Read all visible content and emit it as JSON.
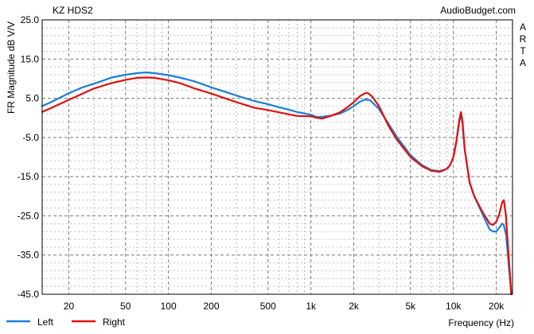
{
  "chart_data": {
    "type": "line",
    "title": "KZ HDS2",
    "watermark": "AudioBudget.com",
    "side_label": [
      "A",
      "R",
      "T",
      "A"
    ],
    "xlabel": "Frequency (Hz)",
    "ylabel": "FR Magnitude dB V/V",
    "x_scale": "log",
    "xlim": [
      13,
      26000
    ],
    "ylim": [
      -45,
      25
    ],
    "grid": true,
    "legend_position": "bottom-left",
    "y_ticks": [
      {
        "value": 25,
        "label": "25.0"
      },
      {
        "value": 15,
        "label": "15.0"
      },
      {
        "value": 5,
        "label": "5.0"
      },
      {
        "value": -5,
        "label": "-5.0"
      },
      {
        "value": -15,
        "label": "-15.0"
      },
      {
        "value": -25,
        "label": "-25.0"
      },
      {
        "value": -35,
        "label": "-35.0"
      },
      {
        "value": -45,
        "label": "-45.0"
      }
    ],
    "x_ticks": [
      {
        "value": 20,
        "label": "20"
      },
      {
        "value": 50,
        "label": "50"
      },
      {
        "value": 100,
        "label": "100"
      },
      {
        "value": 200,
        "label": "200"
      },
      {
        "value": 500,
        "label": "500"
      },
      {
        "value": 1000,
        "label": "1k"
      },
      {
        "value": 2000,
        "label": "2k"
      },
      {
        "value": 5000,
        "label": "5k"
      },
      {
        "value": 10000,
        "label": "10k"
      },
      {
        "value": 20000,
        "label": "20k"
      }
    ],
    "series": [
      {
        "name": "Left",
        "color": "#1a7fd6",
        "points": [
          [
            13,
            3.0
          ],
          [
            15,
            4.0
          ],
          [
            20,
            6.3
          ],
          [
            25,
            7.8
          ],
          [
            30,
            8.7
          ],
          [
            40,
            10.3
          ],
          [
            50,
            11.0
          ],
          [
            60,
            11.4
          ],
          [
            70,
            11.6
          ],
          [
            80,
            11.4
          ],
          [
            100,
            10.9
          ],
          [
            120,
            10.3
          ],
          [
            150,
            9.4
          ],
          [
            200,
            7.8
          ],
          [
            300,
            5.7
          ],
          [
            400,
            4.3
          ],
          [
            500,
            3.5
          ],
          [
            600,
            2.7
          ],
          [
            700,
            2.1
          ],
          [
            800,
            1.5
          ],
          [
            1000,
            0.8
          ],
          [
            1100,
            0.2
          ],
          [
            1200,
            0.3
          ],
          [
            1400,
            0.6
          ],
          [
            1600,
            1.1
          ],
          [
            1800,
            2.0
          ],
          [
            2000,
            3.0
          ],
          [
            2200,
            4.1
          ],
          [
            2400,
            4.7
          ],
          [
            2600,
            4.5
          ],
          [
            3000,
            2.3
          ],
          [
            3500,
            -1.5
          ],
          [
            4000,
            -4.8
          ],
          [
            5000,
            -9.5
          ],
          [
            6000,
            -12.0
          ],
          [
            7000,
            -13.3
          ],
          [
            8000,
            -13.6
          ],
          [
            9000,
            -13.0
          ],
          [
            9500,
            -12.0
          ],
          [
            10000,
            -10.0
          ],
          [
            10500,
            -6.0
          ],
          [
            11000,
            -1.0
          ],
          [
            11300,
            1.0
          ],
          [
            11600,
            -1.5
          ],
          [
            12000,
            -8.0
          ],
          [
            13000,
            -16.5
          ],
          [
            14000,
            -20.0
          ],
          [
            16000,
            -24.5
          ],
          [
            18000,
            -28.5
          ],
          [
            19000,
            -29.0
          ],
          [
            20000,
            -29.0
          ],
          [
            21000,
            -28.0
          ],
          [
            22000,
            -27.0
          ],
          [
            22500,
            -27.2
          ],
          [
            23500,
            -30.0
          ],
          [
            24500,
            -38.0
          ],
          [
            25500,
            -45.0
          ]
        ]
      },
      {
        "name": "Right",
        "color": "#e01010",
        "points": [
          [
            13,
            1.5
          ],
          [
            15,
            2.5
          ],
          [
            20,
            4.6
          ],
          [
            25,
            6.2
          ],
          [
            30,
            7.5
          ],
          [
            40,
            8.9
          ],
          [
            50,
            9.7
          ],
          [
            60,
            10.2
          ],
          [
            70,
            10.3
          ],
          [
            80,
            10.2
          ],
          [
            100,
            9.6
          ],
          [
            120,
            8.9
          ],
          [
            150,
            7.6
          ],
          [
            200,
            6.2
          ],
          [
            300,
            4.0
          ],
          [
            400,
            2.6
          ],
          [
            500,
            2.0
          ],
          [
            600,
            1.4
          ],
          [
            700,
            0.9
          ],
          [
            800,
            0.5
          ],
          [
            1000,
            0.4
          ],
          [
            1100,
            0.0
          ],
          [
            1200,
            -0.2
          ],
          [
            1400,
            0.6
          ],
          [
            1600,
            1.4
          ],
          [
            1800,
            2.7
          ],
          [
            2000,
            4.0
          ],
          [
            2200,
            5.5
          ],
          [
            2400,
            6.3
          ],
          [
            2500,
            6.4
          ],
          [
            2700,
            5.4
          ],
          [
            3000,
            3.0
          ],
          [
            3500,
            -2.0
          ],
          [
            4000,
            -5.5
          ],
          [
            5000,
            -10.0
          ],
          [
            6000,
            -12.3
          ],
          [
            7000,
            -13.5
          ],
          [
            8000,
            -13.8
          ],
          [
            9000,
            -13.0
          ],
          [
            9500,
            -12.0
          ],
          [
            10000,
            -10.0
          ],
          [
            10500,
            -6.0
          ],
          [
            11000,
            -0.5
          ],
          [
            11300,
            1.5
          ],
          [
            11600,
            -1.0
          ],
          [
            12000,
            -8.0
          ],
          [
            13000,
            -16.5
          ],
          [
            14000,
            -20.0
          ],
          [
            16000,
            -24.0
          ],
          [
            18000,
            -27.0
          ],
          [
            19000,
            -27.3
          ],
          [
            20000,
            -26.5
          ],
          [
            21000,
            -24.5
          ],
          [
            22000,
            -21.5
          ],
          [
            22600,
            -21.0
          ],
          [
            23300,
            -24.5
          ],
          [
            24500,
            -36.0
          ],
          [
            25500,
            -45.0
          ]
        ]
      }
    ]
  }
}
